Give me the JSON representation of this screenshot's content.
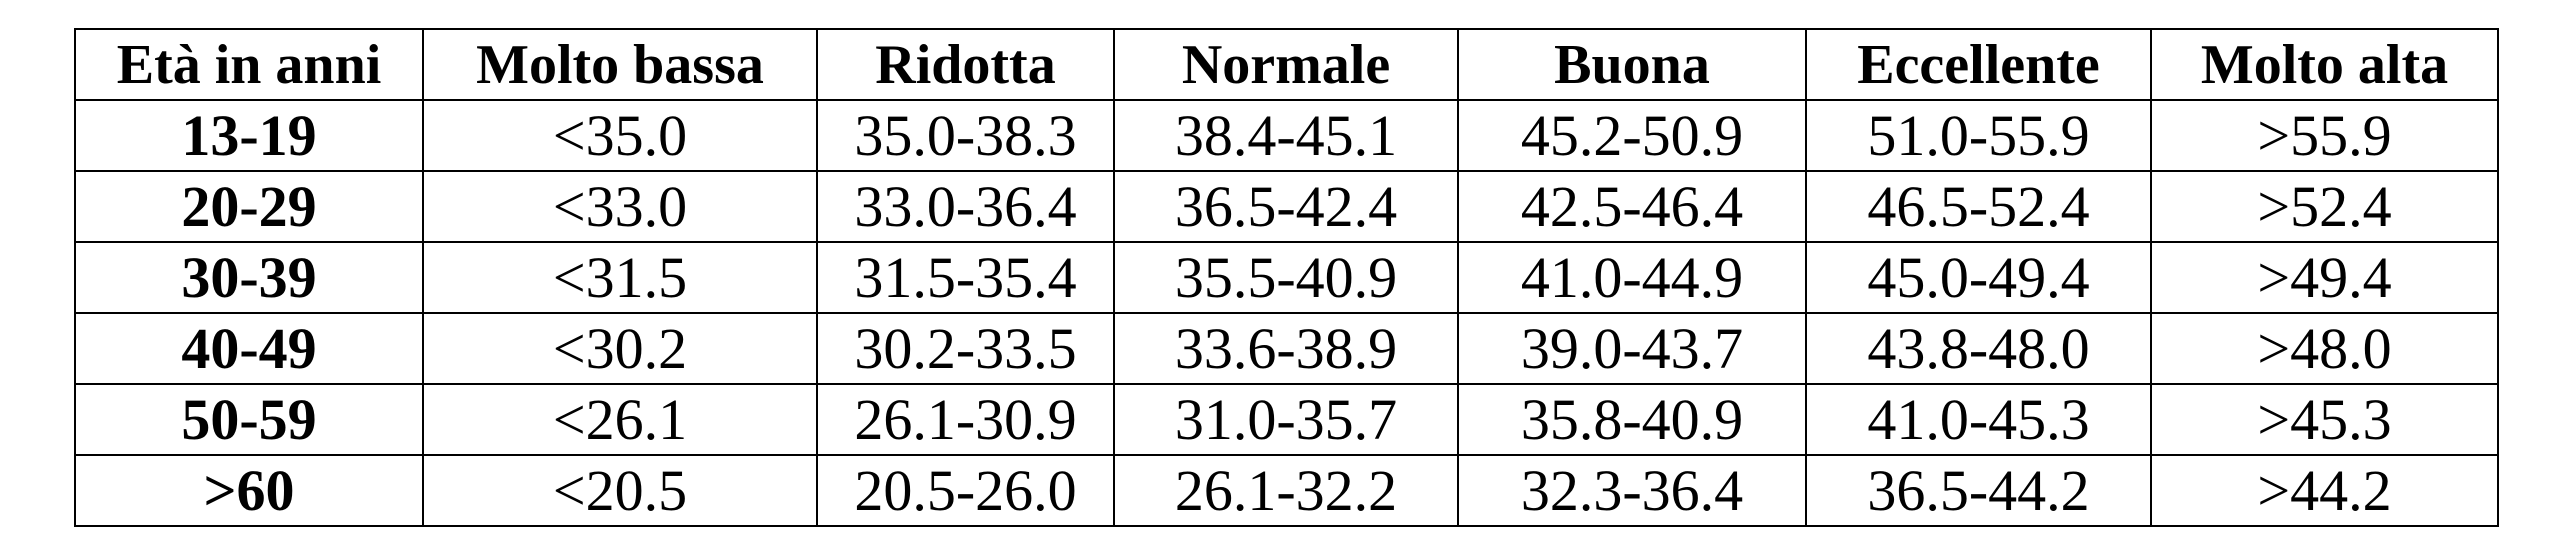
{
  "table": {
    "header": [
      "Età in anni",
      "Molto bassa",
      "Ridotta",
      "Normale",
      "Buona",
      "Eccellente",
      "Molto alta"
    ],
    "rows": [
      [
        "13-19",
        "<35.0",
        "35.0-38.3",
        "38.4-45.1",
        "45.2-50.9",
        "51.0-55.9",
        ">55.9"
      ],
      [
        "20-29",
        "<33.0",
        "33.0-36.4",
        "36.5-42.4",
        "42.5-46.4",
        "46.5-52.4",
        ">52.4"
      ],
      [
        "30-39",
        "<31.5",
        "31.5-35.4",
        "35.5-40.9",
        "41.0-44.9",
        "45.0-49.4",
        ">49.4"
      ],
      [
        "40-49",
        "<30.2",
        "30.2-33.5",
        "33.6-38.9",
        "39.0-43.7",
        "43.8-48.0",
        ">48.0"
      ],
      [
        "50-59",
        "<26.1",
        "26.1-30.9",
        "31.0-35.7",
        "35.8-40.9",
        "41.0-45.3",
        ">45.3"
      ],
      [
        ">60",
        "<20.5",
        "20.5-26.0",
        "26.1-32.2",
        "32.3-36.4",
        "36.5-44.2",
        ">44.2"
      ]
    ]
  }
}
